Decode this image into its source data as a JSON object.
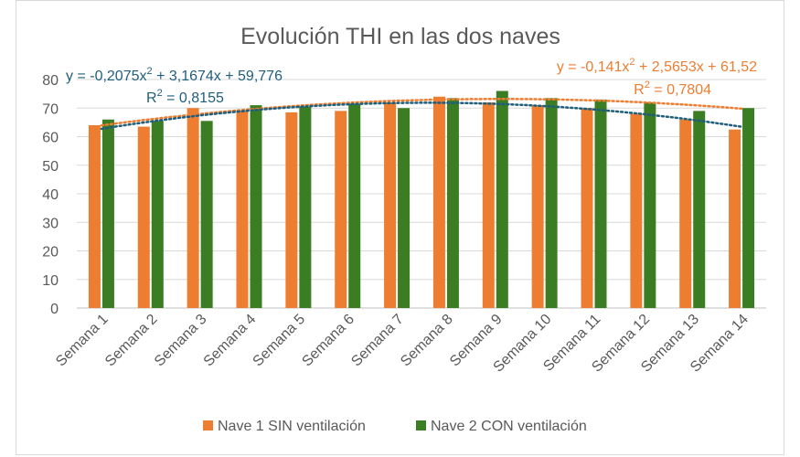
{
  "chart_data": {
    "type": "bar",
    "title": "Evolución THI en las dos naves",
    "xlabel": "",
    "ylabel": "",
    "ylim": [
      0,
      80
    ],
    "yticks": [
      0,
      10,
      20,
      30,
      40,
      50,
      60,
      70,
      80
    ],
    "grid": true,
    "legend_position": "bottom",
    "categories": [
      "Semana 1",
      "Semana 2",
      "Semana 3",
      "Semana 4",
      "Semana 5",
      "Semana 6",
      "Semana 7",
      "Semana 8",
      "Semana 9",
      "Semana 10",
      "Semana 11",
      "Semana 12",
      "Semana 13",
      "Semana 14"
    ],
    "series": [
      {
        "name": "Nave 1 SIN ventilación",
        "color": "#ed7d31",
        "values": [
          64,
          63.5,
          70,
          69,
          68.5,
          69,
          72,
          74,
          72,
          71,
          70,
          68,
          66,
          62.5
        ],
        "trendline": {
          "type": "poly2",
          "a": -0.141,
          "b": 2.5653,
          "c": 61.52,
          "color": "#ed7d31",
          "equation_prefix": "y = -0,141x",
          "equation_suffix": " + 2,5653x + 61,52",
          "r2_prefix": "R",
          "r2_suffix": " = 0,7804",
          "superscript": "2"
        }
      },
      {
        "name": "Nave 2 CON ventilación",
        "color": "#3a7d22",
        "values": [
          66,
          65.5,
          65.5,
          71,
          70.5,
          71.5,
          70,
          73.5,
          76,
          73.5,
          73,
          72,
          69,
          70
        ],
        "trendline": {
          "type": "poly2",
          "a": -0.2075,
          "b": 3.1674,
          "c": 59.776,
          "color": "#1f5e7b",
          "equation_prefix": "y = -0,2075x",
          "equation_suffix": " + 3,1674x + 59,776",
          "r2_prefix": "R",
          "r2_suffix": " = 0,8155",
          "superscript": "2"
        }
      }
    ]
  }
}
